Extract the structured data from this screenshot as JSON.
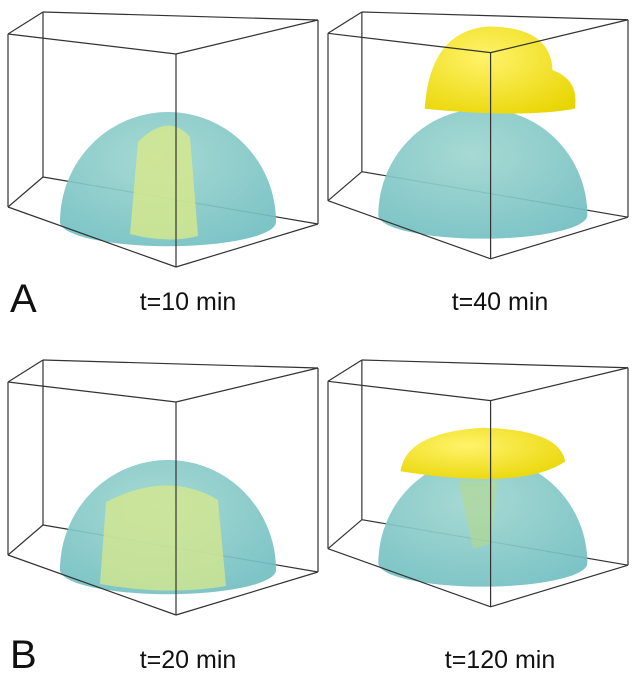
{
  "panels": [
    {
      "label": "A",
      "captions": [
        "t=10 min",
        "t=40 min"
      ]
    },
    {
      "label": "B",
      "captions": [
        "t=20 min",
        "t=120 min"
      ]
    }
  ]
}
